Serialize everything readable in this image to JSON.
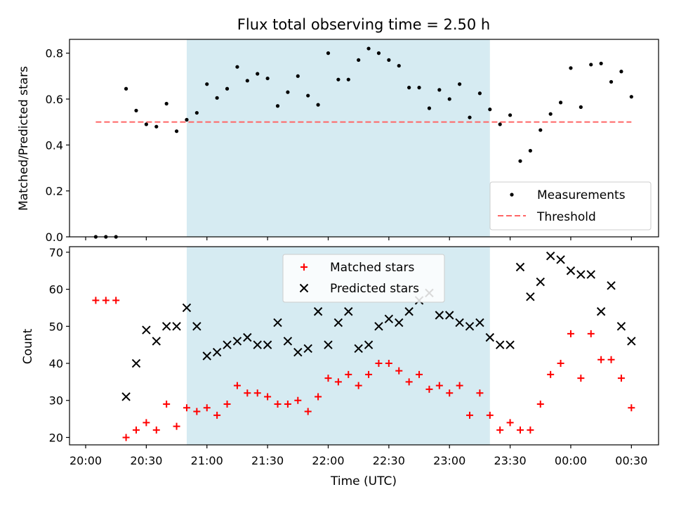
{
  "chart_data": [
    {
      "type": "scatter",
      "title": "Flux total observing time = 2.50 h",
      "ylabel": "Matched/Predicted stars",
      "xlabel": "",
      "ylim": [
        0,
        0.86
      ],
      "yticks": [
        "0.0",
        "0.2",
        "0.4",
        "0.6",
        "0.8"
      ],
      "shaded_region": {
        "x_start": "20:50",
        "x_end": "23:20",
        "color": "#add8e6"
      },
      "legend": {
        "position": "bottom-right",
        "entries": [
          "Measurements",
          "Threshold"
        ]
      },
      "threshold": {
        "name": "Threshold",
        "value": 0.5,
        "x_start": "20:05",
        "x_end": "00:30",
        "color": "#ff6666"
      },
      "series": [
        {
          "name": "Measurements",
          "color": "#000000",
          "x": [
            "20:05",
            "20:10",
            "20:15",
            "20:20",
            "20:25",
            "20:30",
            "20:35",
            "20:40",
            "20:45",
            "20:50",
            "20:55",
            "21:00",
            "21:05",
            "21:10",
            "21:15",
            "21:20",
            "21:25",
            "21:30",
            "21:35",
            "21:40",
            "21:45",
            "21:50",
            "21:55",
            "22:00",
            "22:05",
            "22:10",
            "22:15",
            "22:20",
            "22:25",
            "22:30",
            "22:35",
            "22:40",
            "22:45",
            "22:50",
            "22:55",
            "23:00",
            "23:05",
            "23:10",
            "23:15",
            "23:20",
            "23:25",
            "23:30",
            "23:35",
            "23:40",
            "23:45",
            "23:50",
            "23:55",
            "00:00",
            "00:05",
            "00:10",
            "00:15",
            "00:20",
            "00:25",
            "00:30"
          ],
          "y": [
            0.0,
            0.0,
            0.0,
            0.645,
            0.55,
            0.49,
            0.48,
            0.58,
            0.46,
            0.51,
            0.54,
            0.665,
            0.605,
            0.645,
            0.74,
            0.68,
            0.71,
            0.69,
            0.57,
            0.63,
            0.7,
            0.615,
            0.575,
            0.8,
            0.685,
            0.685,
            0.77,
            0.82,
            0.8,
            0.77,
            0.745,
            0.65,
            0.65,
            0.56,
            0.64,
            0.6,
            0.665,
            0.52,
            0.625,
            0.555,
            0.49,
            0.53,
            0.33,
            0.375,
            0.465,
            0.535,
            0.585,
            0.735,
            0.565,
            0.75,
            0.755,
            0.675,
            0.72,
            0.61
          ]
        }
      ]
    },
    {
      "type": "scatter",
      "title": "",
      "ylabel": "Count",
      "xlabel": "Time (UTC)",
      "ylim": [
        18,
        71.5
      ],
      "yticks": [
        "20",
        "30",
        "40",
        "50",
        "60",
        "70"
      ],
      "xticks": [
        "20:00",
        "20:30",
        "21:00",
        "21:30",
        "22:00",
        "22:30",
        "23:00",
        "23:30",
        "00:00",
        "00:30"
      ],
      "shaded_region": {
        "x_start": "20:50",
        "x_end": "23:20",
        "color": "#add8e6"
      },
      "legend": {
        "position": "top-center",
        "entries": [
          "Matched stars",
          "Predicted stars"
        ]
      },
      "series": [
        {
          "name": "Matched stars",
          "marker": "plus",
          "color": "#ff0000",
          "x": [
            "20:05",
            "20:10",
            "20:15",
            "20:20",
            "20:25",
            "20:30",
            "20:35",
            "20:40",
            "20:45",
            "20:50",
            "20:55",
            "21:00",
            "21:05",
            "21:10",
            "21:15",
            "21:20",
            "21:25",
            "21:30",
            "21:35",
            "21:40",
            "21:45",
            "21:50",
            "21:55",
            "22:00",
            "22:05",
            "22:10",
            "22:15",
            "22:20",
            "22:25",
            "22:30",
            "22:35",
            "22:40",
            "22:45",
            "22:50",
            "22:55",
            "23:00",
            "23:05",
            "23:10",
            "23:15",
            "23:20",
            "23:25",
            "23:30",
            "23:35",
            "23:40",
            "23:45",
            "23:50",
            "23:55",
            "00:00",
            "00:05",
            "00:10",
            "00:15",
            "00:20",
            "00:25",
            "00:30"
          ],
          "y": [
            57,
            57,
            57,
            20,
            22,
            24,
            22,
            29,
            23,
            28,
            27,
            28,
            26,
            29,
            34,
            32,
            32,
            31,
            29,
            29,
            30,
            27,
            31,
            36,
            35,
            37,
            34,
            37,
            40,
            40,
            38,
            35,
            37,
            33,
            34,
            32,
            34,
            26,
            32,
            26,
            22,
            24,
            22,
            22,
            29,
            37,
            40,
            48,
            36,
            48,
            41,
            41,
            36,
            28
          ]
        },
        {
          "name": "Predicted stars",
          "marker": "x",
          "color": "#000000",
          "x": [
            "20:20",
            "20:25",
            "20:30",
            "20:35",
            "20:40",
            "20:45",
            "20:50",
            "20:55",
            "21:00",
            "21:05",
            "21:10",
            "21:15",
            "21:20",
            "21:25",
            "21:30",
            "21:35",
            "21:40",
            "21:45",
            "21:50",
            "21:55",
            "22:00",
            "22:05",
            "22:10",
            "22:15",
            "22:20",
            "22:25",
            "22:30",
            "22:35",
            "22:40",
            "22:45",
            "22:50",
            "22:55",
            "23:00",
            "23:05",
            "23:10",
            "23:15",
            "23:20",
            "23:25",
            "23:30",
            "23:35",
            "23:40",
            "23:45",
            "23:50",
            "23:55",
            "00:00",
            "00:05",
            "00:10",
            "00:15",
            "00:20",
            "00:25",
            "00:30"
          ],
          "y": [
            31,
            40,
            49,
            46,
            50,
            50,
            55,
            50,
            42,
            43,
            45,
            46,
            47,
            45,
            45,
            51,
            46,
            43,
            44,
            54,
            45,
            51,
            54,
            44,
            45,
            50,
            52,
            51,
            54,
            57,
            59,
            53,
            53,
            51,
            50,
            51,
            47,
            45,
            45,
            66,
            58,
            62,
            69,
            68,
            65,
            64,
            64,
            54,
            61,
            50,
            46
          ]
        }
      ]
    }
  ]
}
